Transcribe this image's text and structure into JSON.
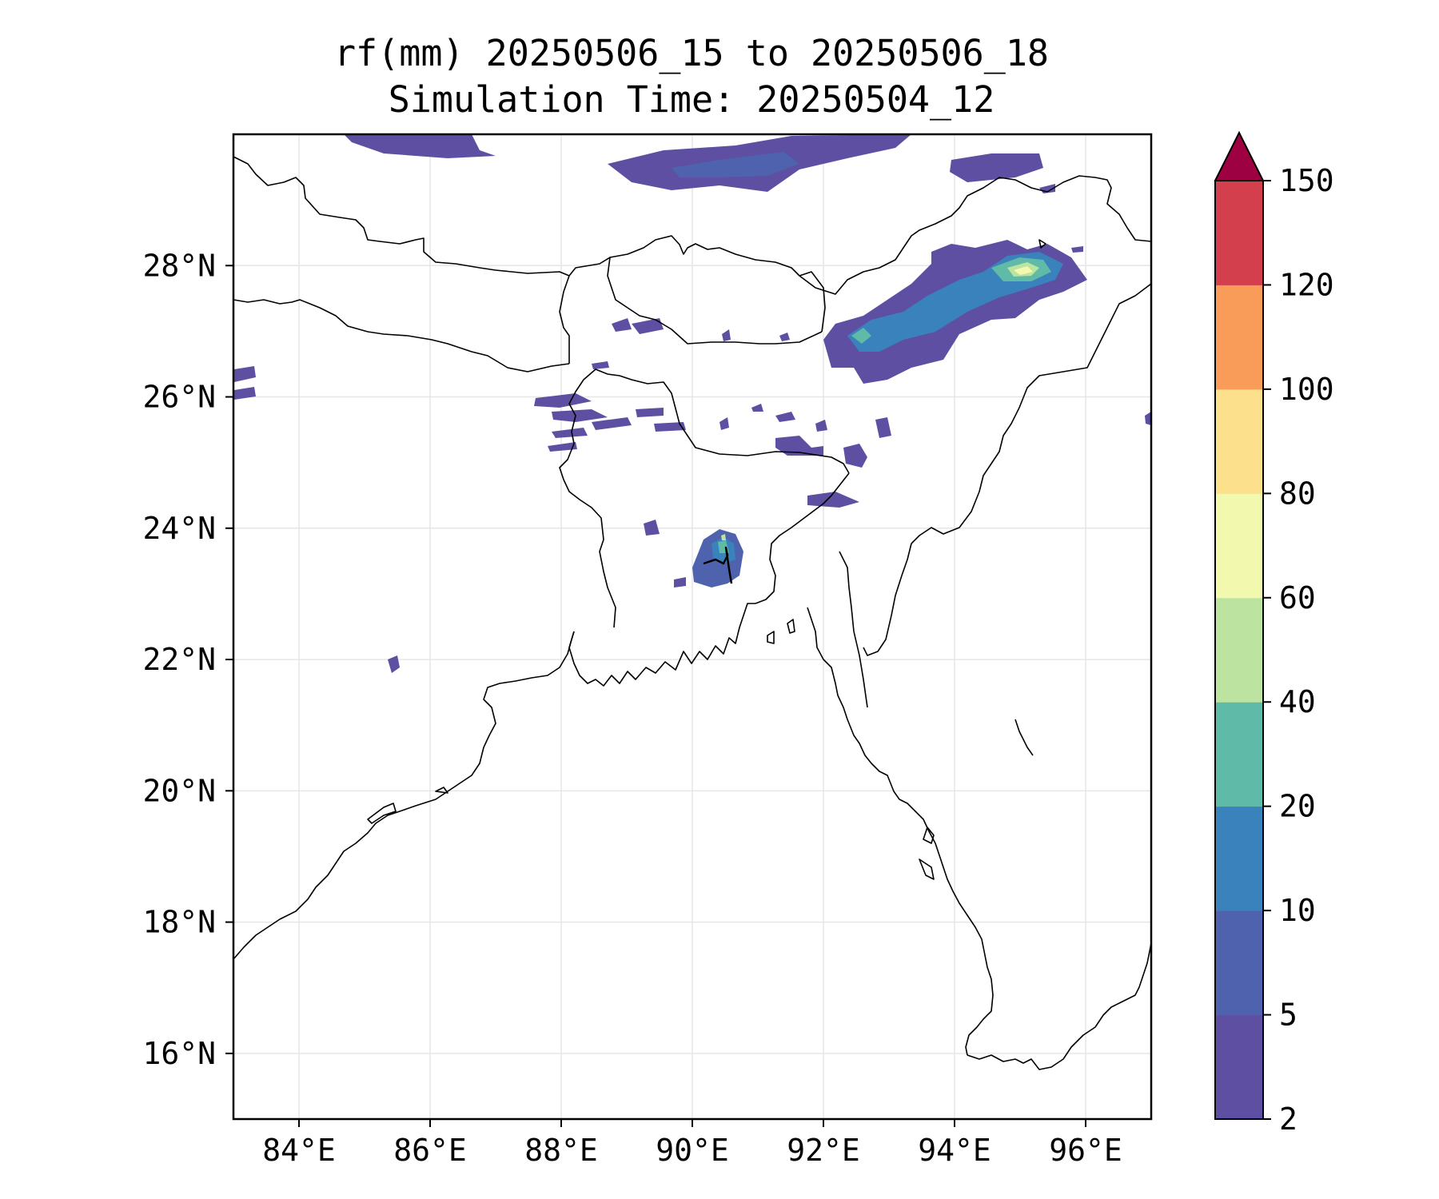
{
  "title": {
    "line1": "rf(mm) 20250506_15 to 20250506_18",
    "line2": "Simulation Time: 20250504_12"
  },
  "map": {
    "lon_range": [
      83,
      97
    ],
    "lat_range": [
      15,
      30
    ],
    "x_ticks": [
      "84°E",
      "86°E",
      "88°E",
      "90°E",
      "92°E",
      "94°E",
      "96°E"
    ],
    "y_ticks": [
      "28°N",
      "26°N",
      "24°N",
      "22°N",
      "20°N",
      "18°N",
      "16°N"
    ],
    "gridlines": true
  },
  "colorbar": {
    "levels": [
      "2",
      "5",
      "10",
      "20",
      "40",
      "60",
      "80",
      "100",
      "120",
      "150"
    ],
    "colors": [
      "#5e4fa2",
      "#4e62ad",
      "#3a82bb",
      "#5fbaa8",
      "#bce3a0",
      "#f2f9ae",
      "#fde08b",
      "#f99c59",
      "#d33f4d",
      "#9e0142"
    ],
    "extend": "max"
  }
}
